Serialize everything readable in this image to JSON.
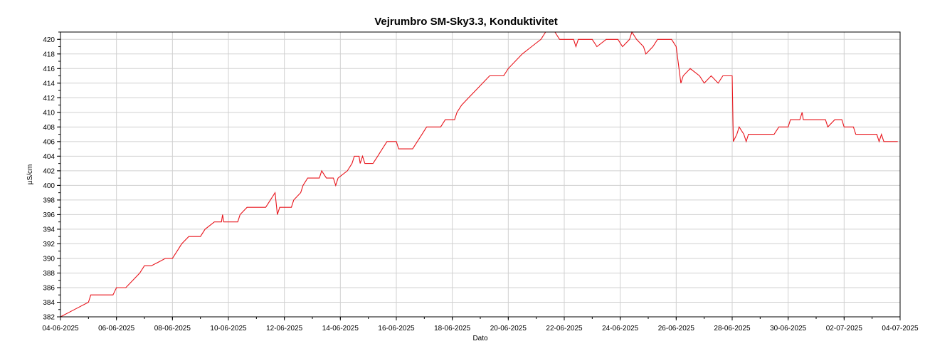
{
  "chart_data": {
    "type": "line",
    "title": "Vejrumbro SM-Sky3.3, Konduktivitet",
    "xlabel": "Dato",
    "ylabel": "µS/cm",
    "xlim": [
      "2025-06-04",
      "2025-07-04"
    ],
    "ylim": [
      382,
      421
    ],
    "grid": true,
    "x_ticks": [
      "04-06-2025",
      "06-06-2025",
      "08-06-2025",
      "10-06-2025",
      "12-06-2025",
      "14-06-2025",
      "16-06-2025",
      "18-06-2025",
      "20-06-2025",
      "22-06-2025",
      "24-06-2025",
      "26-06-2025",
      "28-06-2025",
      "30-06-2025",
      "02-07-2025",
      "04-07-2025"
    ],
    "y_ticks": [
      382,
      384,
      386,
      388,
      390,
      392,
      394,
      396,
      398,
      400,
      402,
      404,
      406,
      408,
      410,
      412,
      414,
      416,
      418,
      420
    ],
    "series": [
      {
        "color": "#e8141b",
        "points": [
          [
            "2025-06-04 00:00",
            382
          ],
          [
            "2025-06-04 12:00",
            383
          ],
          [
            "2025-06-05 00:00",
            384
          ],
          [
            "2025-06-05 02:00",
            385
          ],
          [
            "2025-06-05 21:00",
            385
          ],
          [
            "2025-06-06 00:00",
            386
          ],
          [
            "2025-06-06 08:00",
            386
          ],
          [
            "2025-06-06 14:00",
            387
          ],
          [
            "2025-06-06 20:00",
            388
          ],
          [
            "2025-06-07 00:00",
            389
          ],
          [
            "2025-06-07 06:00",
            389
          ],
          [
            "2025-06-07 12:00",
            389.5
          ],
          [
            "2025-06-07 18:00",
            390
          ],
          [
            "2025-06-08 00:00",
            390
          ],
          [
            "2025-06-08 04:00",
            391
          ],
          [
            "2025-06-08 08:00",
            392
          ],
          [
            "2025-06-08 14:00",
            393
          ],
          [
            "2025-06-09 00:00",
            393
          ],
          [
            "2025-06-09 04:00",
            394
          ],
          [
            "2025-06-09 12:00",
            395
          ],
          [
            "2025-06-09 18:00",
            395
          ],
          [
            "2025-06-09 19:00",
            396
          ],
          [
            "2025-06-09 20:00",
            395
          ],
          [
            "2025-06-10 08:00",
            395
          ],
          [
            "2025-06-10 10:00",
            396
          ],
          [
            "2025-06-10 16:00",
            397
          ],
          [
            "2025-06-11 08:00",
            397
          ],
          [
            "2025-06-11 12:00",
            398
          ],
          [
            "2025-06-11 16:00",
            399
          ],
          [
            "2025-06-11 18:00",
            396
          ],
          [
            "2025-06-11 20:00",
            397
          ],
          [
            "2025-06-12 06:00",
            397
          ],
          [
            "2025-06-12 08:00",
            398
          ],
          [
            "2025-06-12 14:00",
            399
          ],
          [
            "2025-06-12 16:00",
            400
          ],
          [
            "2025-06-12 20:00",
            401
          ],
          [
            "2025-06-13 06:00",
            401
          ],
          [
            "2025-06-13 08:00",
            402
          ],
          [
            "2025-06-13 12:00",
            401
          ],
          [
            "2025-06-13 18:00",
            401
          ],
          [
            "2025-06-13 20:00",
            400
          ],
          [
            "2025-06-13 22:00",
            401
          ],
          [
            "2025-06-14 06:00",
            402
          ],
          [
            "2025-06-14 10:00",
            403
          ],
          [
            "2025-06-14 12:00",
            404
          ],
          [
            "2025-06-14 16:00",
            404
          ],
          [
            "2025-06-14 17:00",
            403
          ],
          [
            "2025-06-14 19:00",
            404
          ],
          [
            "2025-06-14 21:00",
            403
          ],
          [
            "2025-06-15 04:00",
            403
          ],
          [
            "2025-06-15 08:00",
            404
          ],
          [
            "2025-06-15 12:00",
            405
          ],
          [
            "2025-06-15 16:00",
            406
          ],
          [
            "2025-06-16 00:00",
            406
          ],
          [
            "2025-06-16 02:00",
            405
          ],
          [
            "2025-06-16 14:00",
            405
          ],
          [
            "2025-06-16 18:00",
            406
          ],
          [
            "2025-06-16 22:00",
            407
          ],
          [
            "2025-06-17 02:00",
            408
          ],
          [
            "2025-06-17 14:00",
            408
          ],
          [
            "2025-06-17 18:00",
            409
          ],
          [
            "2025-06-18 02:00",
            409
          ],
          [
            "2025-06-18 04:00",
            410
          ],
          [
            "2025-06-18 08:00",
            411
          ],
          [
            "2025-06-18 14:00",
            412
          ],
          [
            "2025-06-18 20:00",
            413
          ],
          [
            "2025-06-19 02:00",
            414
          ],
          [
            "2025-06-19 08:00",
            415
          ],
          [
            "2025-06-19 20:00",
            415
          ],
          [
            "2025-06-20 00:00",
            416
          ],
          [
            "2025-06-20 06:00",
            417
          ],
          [
            "2025-06-20 12:00",
            418
          ],
          [
            "2025-06-20 20:00",
            419
          ],
          [
            "2025-06-21 04:00",
            420
          ],
          [
            "2025-06-21 08:00",
            421
          ],
          [
            "2025-06-21 16:00",
            421
          ],
          [
            "2025-06-21 20:00",
            420
          ],
          [
            "2025-06-22 08:00",
            420
          ],
          [
            "2025-06-22 10:00",
            419
          ],
          [
            "2025-06-22 12:00",
            420
          ],
          [
            "2025-06-23 00:00",
            420
          ],
          [
            "2025-06-23 04:00",
            419
          ],
          [
            "2025-06-23 12:00",
            420
          ],
          [
            "2025-06-23 22:00",
            420
          ],
          [
            "2025-06-24 02:00",
            419
          ],
          [
            "2025-06-24 08:00",
            420
          ],
          [
            "2025-06-24 10:00",
            421
          ],
          [
            "2025-06-24 14:00",
            420
          ],
          [
            "2025-06-24 20:00",
            419
          ],
          [
            "2025-06-24 22:00",
            418
          ],
          [
            "2025-06-25 04:00",
            419
          ],
          [
            "2025-06-25 08:00",
            420
          ],
          [
            "2025-06-25 20:00",
            420
          ],
          [
            "2025-06-26 00:00",
            419
          ],
          [
            "2025-06-26 04:00",
            414
          ],
          [
            "2025-06-26 06:00",
            415
          ],
          [
            "2025-06-26 12:00",
            416
          ],
          [
            "2025-06-26 20:00",
            415
          ],
          [
            "2025-06-27 00:00",
            414
          ],
          [
            "2025-06-27 06:00",
            415
          ],
          [
            "2025-06-27 12:00",
            414
          ],
          [
            "2025-06-27 16:00",
            415
          ],
          [
            "2025-06-28 00:00",
            415
          ],
          [
            "2025-06-28 01:00",
            406
          ],
          [
            "2025-06-28 04:00",
            407
          ],
          [
            "2025-06-28 06:00",
            408
          ],
          [
            "2025-06-28 10:00",
            407
          ],
          [
            "2025-06-28 12:00",
            406
          ],
          [
            "2025-06-28 14:00",
            407
          ],
          [
            "2025-06-29 12:00",
            407
          ],
          [
            "2025-06-29 16:00",
            408
          ],
          [
            "2025-06-30 00:00",
            408
          ],
          [
            "2025-06-30 02:00",
            409
          ],
          [
            "2025-06-30 10:00",
            409
          ],
          [
            "2025-06-30 12:00",
            410
          ],
          [
            "2025-06-30 13:00",
            409
          ],
          [
            "2025-07-01 08:00",
            409
          ],
          [
            "2025-07-01 10:00",
            408
          ],
          [
            "2025-07-01 16:00",
            409
          ],
          [
            "2025-07-01 22:00",
            409
          ],
          [
            "2025-07-02 00:00",
            408
          ],
          [
            "2025-07-02 08:00",
            408
          ],
          [
            "2025-07-02 10:00",
            407
          ],
          [
            "2025-07-03 04:00",
            407
          ],
          [
            "2025-07-03 06:00",
            406
          ],
          [
            "2025-07-03 08:00",
            407
          ],
          [
            "2025-07-03 10:00",
            406
          ],
          [
            "2025-07-03 22:00",
            406
          ]
        ]
      }
    ]
  }
}
